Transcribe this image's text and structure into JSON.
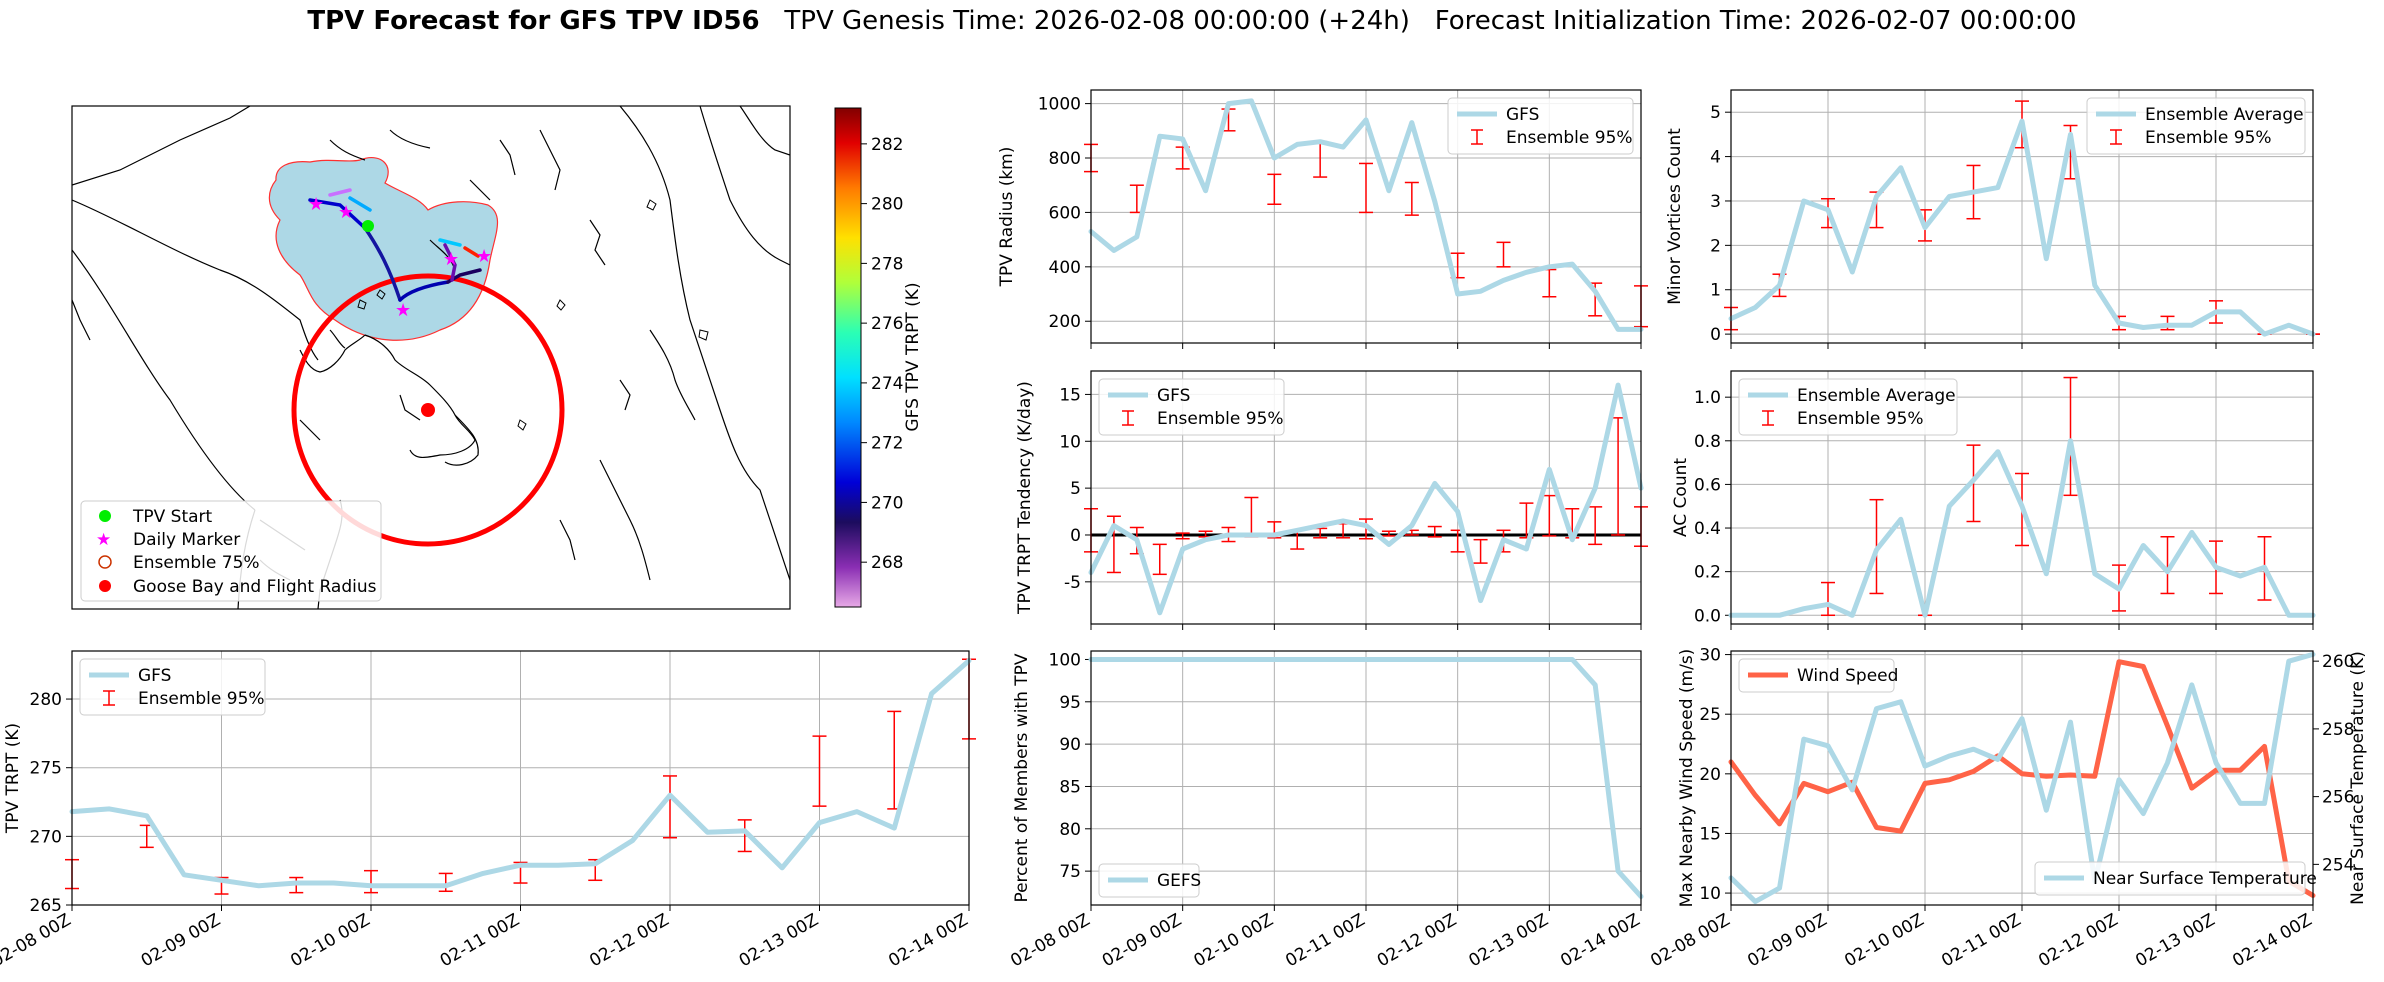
{
  "title": {
    "bold": "TPV Forecast for GFS TPV ID56",
    "rest": "TPV Genesis Time: 2026-02-08 00:00:00 (+24h)   Forecast Initialization Time: 2026-02-07 00:00:00"
  },
  "colors": {
    "gfs_line": "#add8e6",
    "ensemble": "#ff0000",
    "wind": "#ff6347",
    "temp_axis": "#4169e1",
    "grid": "#b0b0b0"
  },
  "map": {
    "colorbar_label": "GFS TPV TRPT (K)",
    "colorbar_ticks": [
      "268",
      "270",
      "272",
      "274",
      "276",
      "278",
      "280",
      "282"
    ],
    "colorbar_range": [
      266.5,
      283.2
    ],
    "legend": [
      "TPV Start",
      "Daily Marker",
      "Ensemble 75%",
      "Goose Bay and Flight Radius"
    ],
    "icons": [
      "green-dot",
      "magenta-star",
      "hollow-circle",
      "red-dot"
    ]
  },
  "chart_data": [
    {
      "id": "radius",
      "type": "line",
      "ylabel": "TPV Radius (km)",
      "ylim": [
        120,
        1050
      ],
      "yticks": [
        200,
        400,
        600,
        800,
        1000
      ],
      "x_ticks": [
        "02-08 00Z",
        "02-09 00Z",
        "02-10 00Z",
        "02-11 00Z",
        "02-12 00Z",
        "02-13 00Z",
        "02-14 00Z"
      ],
      "series": [
        {
          "name": "GFS",
          "values": [
            530,
            460,
            510,
            880,
            870,
            680,
            1000,
            1010,
            800,
            850,
            860,
            840,
            940,
            680,
            930,
            640,
            300,
            310,
            350,
            380,
            400,
            410,
            310,
            170,
            170
          ]
        }
      ],
      "ensemble": {
        "name": "Ensemble 95%",
        "points": [
          {
            "x": 0,
            "lo": 750,
            "hi": 850
          },
          {
            "x": 2,
            "lo": 600,
            "hi": 700
          },
          {
            "x": 4,
            "lo": 760,
            "hi": 840
          },
          {
            "x": 6,
            "lo": 900,
            "hi": 980
          },
          {
            "x": 8,
            "lo": 630,
            "hi": 740
          },
          {
            "x": 10,
            "lo": 730,
            "hi": 860
          },
          {
            "x": 12,
            "lo": 600,
            "hi": 780
          },
          {
            "x": 14,
            "lo": 590,
            "hi": 710
          },
          {
            "x": 16,
            "lo": 360,
            "hi": 450
          },
          {
            "x": 18,
            "lo": 400,
            "hi": 490
          },
          {
            "x": 20,
            "lo": 290,
            "hi": 390
          },
          {
            "x": 22,
            "lo": 220,
            "hi": 340
          },
          {
            "x": 24,
            "lo": 180,
            "hi": 330
          }
        ]
      },
      "legend": "upper right"
    },
    {
      "id": "minor",
      "type": "line",
      "ylabel": "Minor Vortices Count",
      "ylim": [
        -0.2,
        5.5
      ],
      "yticks": [
        0,
        1,
        2,
        3,
        4,
        5
      ],
      "x_ticks": [
        "02-08 00Z",
        "02-09 00Z",
        "02-10 00Z",
        "02-11 00Z",
        "02-12 00Z",
        "02-13 00Z",
        "02-14 00Z"
      ],
      "series": [
        {
          "name": "Ensemble Average",
          "values": [
            0.35,
            0.6,
            1.1,
            3.0,
            2.8,
            1.4,
            3.1,
            3.75,
            2.4,
            3.1,
            3.2,
            3.3,
            4.8,
            1.7,
            4.5,
            1.1,
            0.25,
            0.15,
            0.2,
            0.2,
            0.5,
            0.5,
            0.0,
            0.2,
            0.0
          ]
        }
      ],
      "ensemble": {
        "name": "Ensemble 95%",
        "points": [
          {
            "x": 0,
            "lo": 0.1,
            "hi": 0.6
          },
          {
            "x": 2,
            "lo": 0.85,
            "hi": 1.35
          },
          {
            "x": 4,
            "lo": 2.4,
            "hi": 3.05
          },
          {
            "x": 6,
            "lo": 2.4,
            "hi": 3.2
          },
          {
            "x": 8,
            "lo": 2.1,
            "hi": 2.8
          },
          {
            "x": 10,
            "lo": 2.6,
            "hi": 3.8
          },
          {
            "x": 12,
            "lo": 4.2,
            "hi": 5.25
          },
          {
            "x": 14,
            "lo": 3.5,
            "hi": 4.7
          },
          {
            "x": 16,
            "lo": 0.1,
            "hi": 0.4
          },
          {
            "x": 18,
            "lo": 0.1,
            "hi": 0.4
          },
          {
            "x": 20,
            "lo": 0.25,
            "hi": 0.75
          },
          {
            "x": 22,
            "lo": 0.0,
            "hi": 0.0
          },
          {
            "x": 24,
            "lo": 0.0,
            "hi": 0.0
          }
        ]
      },
      "legend": "upper right"
    },
    {
      "id": "tendency",
      "type": "line",
      "ylabel": "TPV TRPT Tendency (K/day)",
      "ylim": [
        -9.5,
        17.5
      ],
      "yticks": [
        -5,
        0,
        5,
        10,
        15
      ],
      "x_ticks": [
        "02-08 00Z",
        "02-09 00Z",
        "02-10 00Z",
        "02-11 00Z",
        "02-12 00Z",
        "02-13 00Z",
        "02-14 00Z"
      ],
      "zero_line": true,
      "series": [
        {
          "name": "GFS",
          "values": [
            -4.0,
            1.0,
            -0.5,
            -8.3,
            -1.5,
            -0.5,
            0.0,
            0.0,
            0.0,
            0.5,
            1.0,
            1.5,
            1.0,
            -1.0,
            1.0,
            5.5,
            2.5,
            -7.0,
            -0.5,
            -1.5,
            7.0,
            -0.5,
            5.0,
            16.0,
            5.0
          ]
        }
      ],
      "ensemble": {
        "name": "Ensemble 95%",
        "points": [
          {
            "x": 0,
            "lo": -1.8,
            "hi": 2.8
          },
          {
            "x": 1,
            "lo": -4.0,
            "hi": 2.0
          },
          {
            "x": 2,
            "lo": -2.0,
            "hi": 0.8
          },
          {
            "x": 3,
            "lo": -4.2,
            "hi": -1.0
          },
          {
            "x": 4,
            "lo": -0.4,
            "hi": 0.2
          },
          {
            "x": 5,
            "lo": -0.2,
            "hi": 0.4
          },
          {
            "x": 6,
            "lo": -0.7,
            "hi": 0.8
          },
          {
            "x": 7,
            "lo": -0.2,
            "hi": 4.0
          },
          {
            "x": 8,
            "lo": -0.3,
            "hi": 1.4
          },
          {
            "x": 9,
            "lo": -1.5,
            "hi": 0.5
          },
          {
            "x": 10,
            "lo": -0.3,
            "hi": 0.7
          },
          {
            "x": 11,
            "lo": -0.3,
            "hi": 1.2
          },
          {
            "x": 12,
            "lo": -0.4,
            "hi": 1.7
          },
          {
            "x": 13,
            "lo": -0.1,
            "hi": 0.4
          },
          {
            "x": 14,
            "lo": 0.0,
            "hi": 0.5
          },
          {
            "x": 15,
            "lo": -0.2,
            "hi": 0.9
          },
          {
            "x": 16,
            "lo": -1.8,
            "hi": 0.5
          },
          {
            "x": 17,
            "lo": -3.0,
            "hi": -0.5
          },
          {
            "x": 18,
            "lo": -1.8,
            "hi": 0.5
          },
          {
            "x": 19,
            "lo": -0.3,
            "hi": 3.4
          },
          {
            "x": 20,
            "lo": -0.1,
            "hi": 4.2
          },
          {
            "x": 21,
            "lo": -0.3,
            "hi": 2.8
          },
          {
            "x": 22,
            "lo": -1.0,
            "hi": 3.0
          },
          {
            "x": 23,
            "lo": 0.0,
            "hi": 12.5
          },
          {
            "x": 24,
            "lo": -1.2,
            "hi": 3.0
          }
        ]
      },
      "legend": "upper left"
    },
    {
      "id": "ac",
      "type": "line",
      "ylabel": "AC Count",
      "ylim": [
        -0.04,
        1.12
      ],
      "yticks": [
        0.0,
        0.2,
        0.4,
        0.6,
        0.8,
        1.0
      ],
      "tick_format": "1dp",
      "x_ticks": [
        "02-08 00Z",
        "02-09 00Z",
        "02-10 00Z",
        "02-11 00Z",
        "02-12 00Z",
        "02-13 00Z",
        "02-14 00Z"
      ],
      "series": [
        {
          "name": "Ensemble Average",
          "values": [
            0.0,
            0.0,
            0.0,
            0.03,
            0.05,
            0.0,
            0.3,
            0.44,
            0.0,
            0.5,
            0.62,
            0.75,
            0.5,
            0.19,
            0.8,
            0.19,
            0.12,
            0.32,
            0.2,
            0.38,
            0.22,
            0.18,
            0.22,
            0.0,
            0.0
          ]
        }
      ],
      "ensemble": {
        "name": "Ensemble 95%",
        "points": [
          {
            "x": 2,
            "lo": 0.0,
            "hi": 0.0
          },
          {
            "x": 4,
            "lo": 0.0,
            "hi": 0.15
          },
          {
            "x": 6,
            "lo": 0.1,
            "hi": 0.53
          },
          {
            "x": 8,
            "lo": 0.0,
            "hi": 0.0
          },
          {
            "x": 10,
            "lo": 0.43,
            "hi": 0.78
          },
          {
            "x": 12,
            "lo": 0.32,
            "hi": 0.65
          },
          {
            "x": 14,
            "lo": 0.55,
            "hi": 1.09
          },
          {
            "x": 16,
            "lo": 0.02,
            "hi": 0.23
          },
          {
            "x": 18,
            "lo": 0.1,
            "hi": 0.36
          },
          {
            "x": 20,
            "lo": 0.1,
            "hi": 0.34
          },
          {
            "x": 22,
            "lo": 0.07,
            "hi": 0.36
          }
        ]
      },
      "legend": "upper left"
    },
    {
      "id": "trpt",
      "type": "line",
      "ylabel": "TPV TRPT (K)",
      "ylim": [
        265,
        283.5
      ],
      "yticks": [
        265,
        270,
        275,
        280
      ],
      "x_ticks": [
        "02-08 00Z",
        "02-09 00Z",
        "02-10 00Z",
        "02-11 00Z",
        "02-12 00Z",
        "02-13 00Z",
        "02-14 00Z"
      ],
      "series": [
        {
          "name": "GFS",
          "values": [
            271.8,
            272.0,
            271.5,
            267.2,
            266.8,
            266.4,
            266.6,
            266.6,
            266.4,
            266.4,
            266.4,
            267.3,
            267.9,
            267.9,
            268.0,
            269.7,
            273.0,
            270.3,
            270.4,
            267.7,
            271.0,
            271.8,
            270.6,
            280.4,
            282.8
          ]
        }
      ],
      "ensemble": {
        "name": "Ensemble 95%",
        "points": [
          {
            "x": 0,
            "lo": 266.2,
            "hi": 268.3
          },
          {
            "x": 2,
            "lo": 269.2,
            "hi": 270.8
          },
          {
            "x": 4,
            "lo": 265.8,
            "hi": 267.0
          },
          {
            "x": 6,
            "lo": 265.9,
            "hi": 267.0
          },
          {
            "x": 8,
            "lo": 265.9,
            "hi": 267.5
          },
          {
            "x": 10,
            "lo": 266.0,
            "hi": 267.3
          },
          {
            "x": 12,
            "lo": 266.6,
            "hi": 268.1
          },
          {
            "x": 14,
            "lo": 266.8,
            "hi": 268.3
          },
          {
            "x": 16,
            "lo": 269.9,
            "hi": 274.4
          },
          {
            "x": 18,
            "lo": 268.9,
            "hi": 271.2
          },
          {
            "x": 20,
            "lo": 272.2,
            "hi": 277.3
          },
          {
            "x": 22,
            "lo": 272.0,
            "hi": 279.1
          },
          {
            "x": 24,
            "lo": 277.1,
            "hi": 282.9
          }
        ]
      },
      "legend": "upper left"
    },
    {
      "id": "percent",
      "type": "line",
      "ylabel": "Percent of Members with TPV",
      "ylim": [
        71,
        101
      ],
      "yticks": [
        75,
        80,
        85,
        90,
        95,
        100
      ],
      "x_ticks": [
        "02-08 00Z",
        "02-09 00Z",
        "02-10 00Z",
        "02-11 00Z",
        "02-12 00Z",
        "02-13 00Z",
        "02-14 00Z"
      ],
      "series": [
        {
          "name": "GEFS",
          "values": [
            100,
            100,
            100,
            100,
            100,
            100,
            100,
            100,
            100,
            100,
            100,
            100,
            100,
            100,
            100,
            100,
            100,
            100,
            100,
            100,
            100,
            100,
            97,
            75,
            72
          ]
        }
      ],
      "legend": "lower left"
    },
    {
      "id": "wind_temp",
      "type": "line",
      "ylabel": "Max Nearby Wind Speed (m/s)",
      "y2label": "Near Surface Temperature (K)",
      "ylim": [
        9,
        30.3
      ],
      "yticks": [
        10,
        15,
        20,
        25,
        30
      ],
      "y2lim": [
        252.8,
        260.3
      ],
      "y2ticks": [
        254,
        256,
        258,
        260
      ],
      "x_ticks": [
        "02-08 00Z",
        "02-09 00Z",
        "02-10 00Z",
        "02-11 00Z",
        "02-12 00Z",
        "02-13 00Z",
        "02-14 00Z"
      ],
      "series": [
        {
          "name": "Wind Speed",
          "axis": "left",
          "values": [
            21.0,
            18.2,
            15.8,
            19.2,
            18.5,
            19.3,
            15.5,
            15.2,
            19.2,
            19.5,
            20.2,
            21.5,
            20.0,
            19.8,
            19.9,
            19.8,
            29.4,
            29.0,
            24.0,
            18.8,
            20.3,
            20.3,
            22.3,
            11.0,
            9.8
          ]
        },
        {
          "name": "Near Surface Temperature",
          "axis": "right",
          "values": [
            253.6,
            252.9,
            253.3,
            257.7,
            257.5,
            256.2,
            258.6,
            258.8,
            256.9,
            257.2,
            257.4,
            257.1,
            258.3,
            255.6,
            258.2,
            253.5,
            256.5,
            255.5,
            257.0,
            259.3,
            257.0,
            255.8,
            255.8,
            260.0,
            260.2
          ]
        }
      ],
      "legend": [
        "upper left",
        "lower right"
      ]
    }
  ]
}
